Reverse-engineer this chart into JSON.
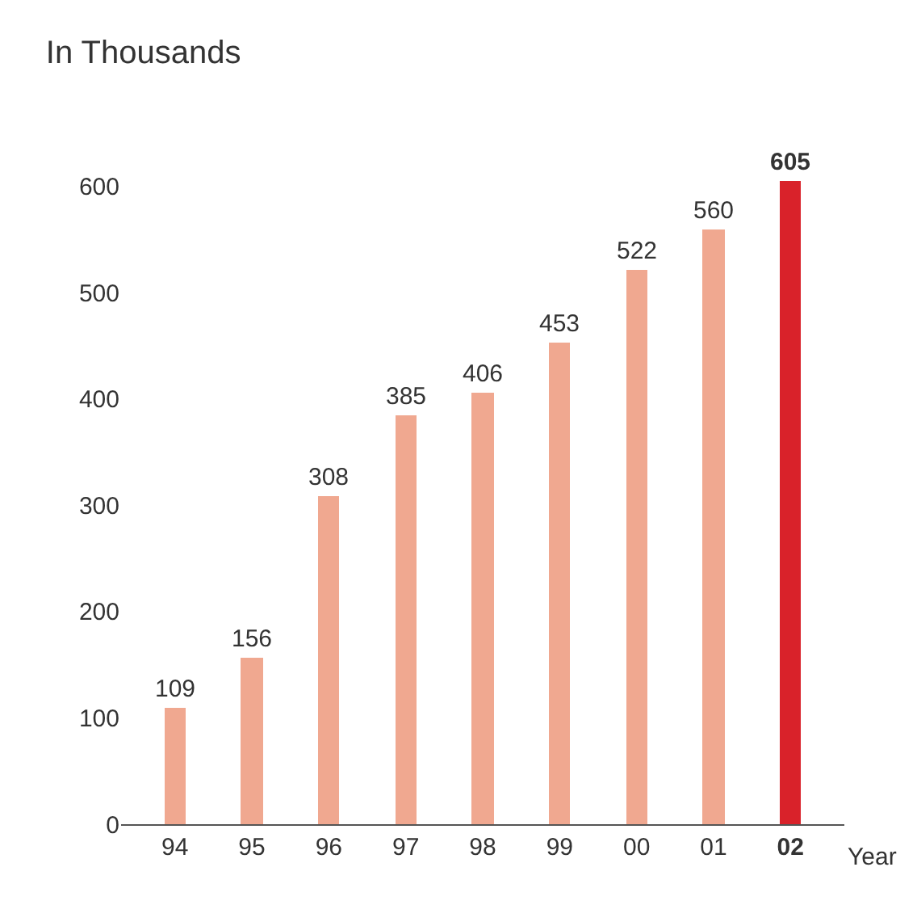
{
  "chart_data": {
    "type": "bar",
    "title": "In Thousands",
    "xlabel": "Year",
    "categories": [
      "94",
      "95",
      "96",
      "97",
      "98",
      "99",
      "00",
      "01",
      "02"
    ],
    "values": [
      109,
      156,
      308,
      385,
      406,
      453,
      522,
      560,
      605
    ],
    "colors": [
      "#f0a890",
      "#f0a890",
      "#f0a890",
      "#f0a890",
      "#f0a890",
      "#f0a890",
      "#f0a890",
      "#f0a890",
      "#d9222a"
    ],
    "ylim": [
      0,
      605
    ],
    "yticks": [
      0,
      100,
      200,
      300,
      400,
      500,
      600
    ],
    "data_labels": true
  }
}
